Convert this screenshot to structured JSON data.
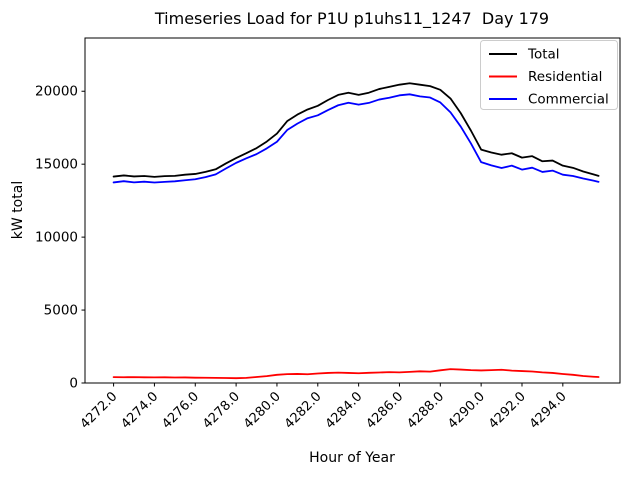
{
  "window": {
    "background": "#ffffff"
  },
  "chart_data": {
    "type": "line",
    "title": "Timeseries Load for P1U p1uhs11_1247  Day 179",
    "xlabel": "Hour of Year",
    "ylabel": "kW total",
    "xlim": [
      4270.6,
      4296.8
    ],
    "ylim": [
      0,
      23650
    ],
    "grid": false,
    "legend_position": "upper right",
    "xticks": {
      "values": [
        4272,
        4274,
        4276,
        4278,
        4280,
        4282,
        4284,
        4286,
        4288,
        4290,
        4292,
        4294
      ],
      "labels": [
        "4272.0",
        "4274.0",
        "4276.0",
        "4278.0",
        "4280.0",
        "4282.0",
        "4284.0",
        "4286.0",
        "4288.0",
        "4290.0",
        "4292.0",
        "4294.0"
      ],
      "rotation": 45
    },
    "yticks": {
      "values": [
        0,
        5000,
        10000,
        15000,
        20000
      ],
      "labels": [
        "0",
        "5000",
        "10000",
        "15000",
        "20000"
      ]
    },
    "x": [
      4272.0,
      4272.5,
      4273.0,
      4273.5,
      4274.0,
      4274.5,
      4275.0,
      4275.5,
      4276.0,
      4276.5,
      4277.0,
      4277.5,
      4278.0,
      4278.5,
      4279.0,
      4279.5,
      4280.0,
      4280.5,
      4281.0,
      4281.5,
      4282.0,
      4282.5,
      4283.0,
      4283.5,
      4284.0,
      4284.5,
      4285.0,
      4285.5,
      4286.0,
      4286.5,
      4287.0,
      4287.5,
      4288.0,
      4288.5,
      4289.0,
      4289.5,
      4290.0,
      4290.5,
      4291.0,
      4291.5,
      4292.0,
      4292.5,
      4293.0,
      4293.5,
      4294.0,
      4294.5,
      4295.0,
      4295.5,
      4295.75
    ],
    "series": [
      {
        "name": "Total",
        "color": "#000000",
        "values": [
          14150,
          14230,
          14160,
          14190,
          14130,
          14180,
          14200,
          14280,
          14330,
          14470,
          14650,
          15050,
          15420,
          15750,
          16100,
          16550,
          17100,
          17950,
          18400,
          18750,
          19000,
          19400,
          19750,
          19900,
          19750,
          19900,
          20150,
          20300,
          20450,
          20550,
          20450,
          20350,
          20100,
          19500,
          18500,
          17300,
          16000,
          15800,
          15650,
          15750,
          15450,
          15550,
          15200,
          15250,
          14900,
          14750,
          14500,
          14300,
          14200
        ]
      },
      {
        "name": "Residential",
        "color": "#ff0000",
        "values": [
          400,
          395,
          405,
          390,
          385,
          390,
          375,
          380,
          365,
          360,
          350,
          345,
          330,
          350,
          410,
          470,
          560,
          610,
          620,
          600,
          650,
          690,
          710,
          690,
          670,
          700,
          720,
          745,
          730,
          760,
          800,
          780,
          870,
          950,
          920,
          880,
          860,
          880,
          910,
          850,
          820,
          790,
          730,
          690,
          620,
          560,
          480,
          430,
          410
        ]
      },
      {
        "name": "Commercial",
        "color": "#0000ff",
        "values": [
          13750,
          13835,
          13755,
          13800,
          13745,
          13790,
          13825,
          13900,
          13965,
          14110,
          14300,
          14705,
          15090,
          15400,
          15690,
          16080,
          16540,
          17340,
          17780,
          18150,
          18350,
          18710,
          19040,
          19210,
          19080,
          19200,
          19430,
          19555,
          19720,
          19790,
          19650,
          19570,
          19230,
          18550,
          17580,
          16420,
          15140,
          14920,
          14740,
          14900,
          14630,
          14760,
          14470,
          14560,
          14280,
          14190,
          14020,
          13870,
          13790
        ]
      }
    ],
    "axis_color": "#000000",
    "legend_border_color": "#cccccc"
  }
}
